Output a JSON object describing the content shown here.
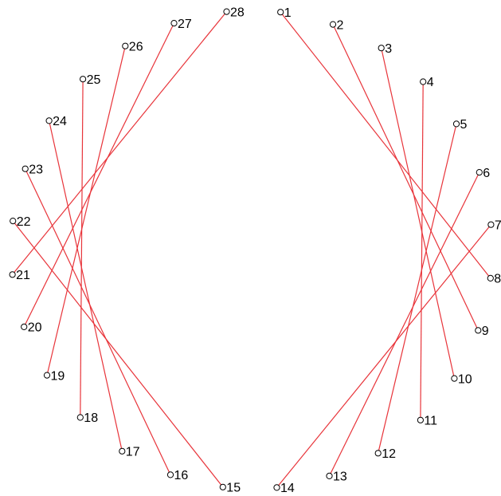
{
  "diagram": {
    "type": "chord-circle",
    "line_color": "#e8343a",
    "node_stroke": "#000000",
    "node_fill": "#ffffff",
    "label_color": "#000000",
    "nodes": [
      "1",
      "2",
      "3",
      "4",
      "5",
      "6",
      "7",
      "8",
      "9",
      "10",
      "11",
      "12",
      "13",
      "14",
      "15",
      "16",
      "17",
      "18",
      "19",
      "20",
      "21",
      "22",
      "23",
      "24",
      "25",
      "26",
      "27",
      "28"
    ],
    "links": [
      [
        "1",
        "8"
      ],
      [
        "2",
        "9"
      ],
      [
        "3",
        "10"
      ],
      [
        "4",
        "11"
      ],
      [
        "5",
        "12"
      ],
      [
        "6",
        "13"
      ],
      [
        "7",
        "14"
      ],
      [
        "15",
        "22"
      ],
      [
        "16",
        "23"
      ],
      [
        "17",
        "24"
      ],
      [
        "18",
        "25"
      ],
      [
        "19",
        "26"
      ],
      [
        "20",
        "27"
      ],
      [
        "21",
        "28"
      ]
    ]
  }
}
